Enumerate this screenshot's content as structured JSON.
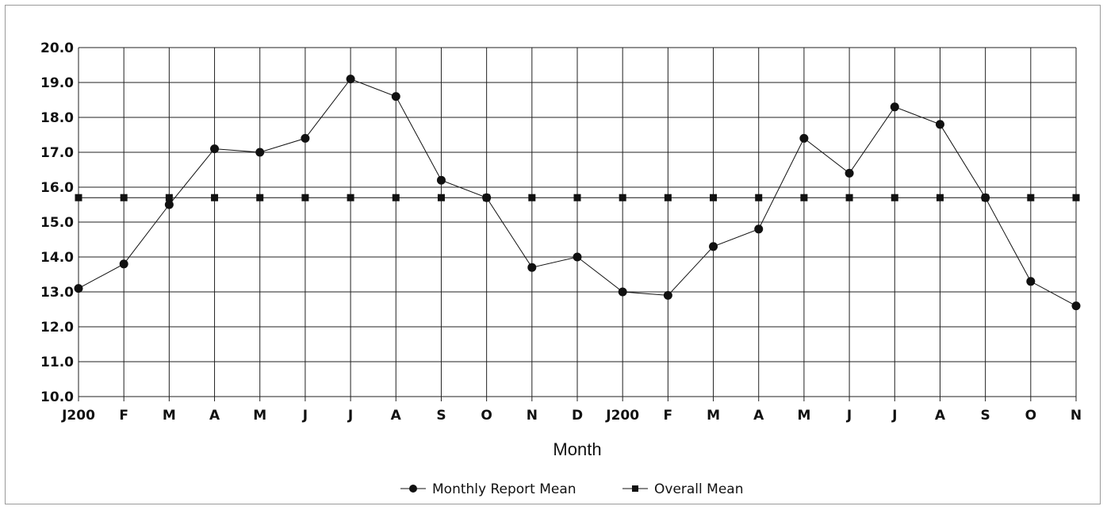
{
  "chart_data": {
    "type": "line",
    "title": "",
    "xlabel": "Month",
    "ylabel": "",
    "ylim": [
      10.0,
      20.0
    ],
    "yticks": [
      "10.0",
      "11.0",
      "12.0",
      "13.0",
      "14.0",
      "15.0",
      "16.0",
      "17.0",
      "18.0",
      "19.0",
      "20.0"
    ],
    "categories": [
      "J200",
      "F",
      "M",
      "A",
      "M",
      "J",
      "J",
      "A",
      "S",
      "O",
      "N",
      "D",
      "J200",
      "F",
      "M",
      "A",
      "M",
      "J",
      "J",
      "A",
      "S",
      "O",
      "N"
    ],
    "grid": true,
    "legend_position": "bottom",
    "series": [
      {
        "name": "Monthly Report Mean",
        "marker": "circle",
        "values": [
          13.1,
          13.8,
          15.5,
          17.1,
          17.0,
          17.4,
          19.1,
          18.6,
          16.2,
          15.7,
          13.7,
          14.0,
          13.0,
          12.9,
          14.3,
          14.8,
          17.4,
          16.4,
          18.3,
          17.8,
          15.7,
          13.3,
          12.6
        ]
      },
      {
        "name": "Overall Mean",
        "marker": "square",
        "values": [
          15.7,
          15.7,
          15.7,
          15.7,
          15.7,
          15.7,
          15.7,
          15.7,
          15.7,
          15.7,
          15.7,
          15.7,
          15.7,
          15.7,
          15.7,
          15.7,
          15.7,
          15.7,
          15.7,
          15.7,
          15.7,
          15.7,
          15.7
        ]
      }
    ],
    "colors": {
      "line": "#111111",
      "grid": "#222222"
    }
  }
}
